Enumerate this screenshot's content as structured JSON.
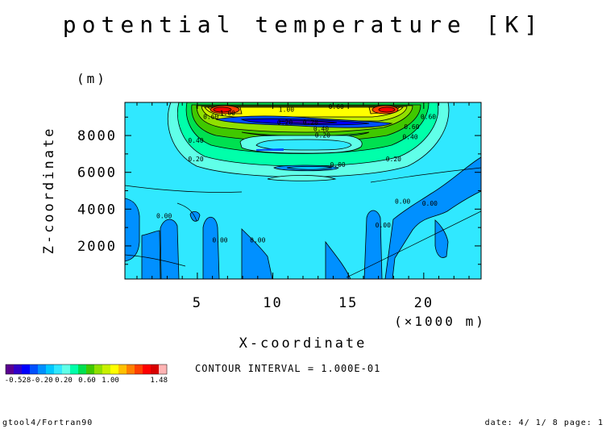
{
  "title": "potential temperature [K]",
  "xlabel": "X-coordinate",
  "ylabel": "Z-coordinate",
  "x_unit": "(×1000 m)",
  "y_unit": "(m)",
  "contour_interval": "CONTOUR INTERVAL = 1.000E-01",
  "footer_left": "gtool4/Fortran90",
  "footer_right": "date: 4/ 1/ 8 page: 1",
  "colorbar": {
    "labels": [
      "-0.528",
      "-0.20",
      "0.20",
      "0.60",
      "1.00",
      "1.48"
    ],
    "colors": [
      "#5a0090",
      "#3000c8",
      "#0000ff",
      "#0050ff",
      "#0090ff",
      "#00c8ff",
      "#30e8ff",
      "#60ffe8",
      "#00ffaa",
      "#00e050",
      "#40c800",
      "#90e000",
      "#c8f000",
      "#ffff00",
      "#ffc000",
      "#ff8000",
      "#ff4000",
      "#ff0000",
      "#d80000",
      "#ffb4b4"
    ]
  },
  "chart_data": {
    "type": "heatmap",
    "title": "potential temperature [K]",
    "xlabel": "X-coordinate",
    "ylabel": "Z-coordinate",
    "x_unit": "(×1000 m)",
    "y_unit": "(m)",
    "xlim": [
      0.2,
      23.8
    ],
    "ylim": [
      200,
      9800
    ],
    "x_ticks": [
      5,
      10,
      15,
      20
    ],
    "y_ticks": [
      2000,
      4000,
      6000,
      8000
    ],
    "value_range": [
      -0.528,
      1.48
    ],
    "contour_interval": 0.1,
    "contour_labels": [
      {
        "text": "0.00",
        "x": 2.8,
        "y": 3500
      },
      {
        "text": "0.00",
        "x": 6.5,
        "y": 2200
      },
      {
        "text": "0.00",
        "x": 9.0,
        "y": 2200
      },
      {
        "text": "0.00",
        "x": 17.3,
        "y": 3000
      },
      {
        "text": "0.00",
        "x": 18.6,
        "y": 4300
      },
      {
        "text": "0.00",
        "x": 20.4,
        "y": 4200
      },
      {
        "text": "0.00",
        "x": 14.3,
        "y": 6300
      },
      {
        "text": "0.20",
        "x": 4.9,
        "y": 6600
      },
      {
        "text": "0.20",
        "x": 18.0,
        "y": 6600
      },
      {
        "text": "0.20",
        "x": 13.3,
        "y": 7900
      },
      {
        "text": "0.40",
        "x": 4.9,
        "y": 7600
      },
      {
        "text": "0.40",
        "x": 19.1,
        "y": 7800
      },
      {
        "text": "0.40",
        "x": 13.2,
        "y": 8250
      },
      {
        "text": "0.60",
        "x": 5.9,
        "y": 8900
      },
      {
        "text": "0.60",
        "x": 14.2,
        "y": 9450
      },
      {
        "text": "0.60",
        "x": 19.2,
        "y": 8350
      },
      {
        "text": "0.60",
        "x": 20.3,
        "y": 8900
      },
      {
        "text": "1.00",
        "x": 10.9,
        "y": 9300
      },
      {
        "text": "1.00",
        "x": 7.0,
        "y": 9100
      },
      {
        "text": "0.20",
        "x": 10.8,
        "y": 8600
      },
      {
        "text": "0.20",
        "x": 12.5,
        "y": 8600
      }
    ]
  }
}
